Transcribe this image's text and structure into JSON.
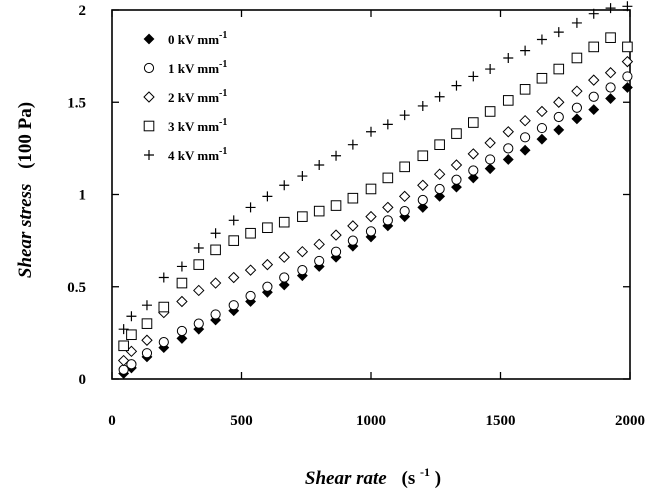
{
  "chart_data": {
    "type": "scatter",
    "xlabel_main": "Shear rate",
    "xlabel_unit": "(s",
    "xlabel_exp": "-1",
    "xlabel_close": ")",
    "ylabel_main": "Shear stress",
    "ylabel_unit": "(100 Pa)",
    "xlim": [
      0,
      2000
    ],
    "ylim": [
      0,
      2
    ],
    "xticks": [
      0,
      500,
      1000,
      1500,
      2000
    ],
    "yticks": [
      0,
      0.5,
      1,
      1.5,
      2
    ],
    "xtick_labels": [
      "0",
      "500",
      "1000",
      "1500",
      "2000"
    ],
    "ytick_labels": [
      "0",
      "0.5",
      "1",
      "1.5",
      "2"
    ],
    "grid": false,
    "legend_position": "top-left",
    "series": [
      {
        "name": "0 kV mm",
        "name_exp": "-1",
        "marker": "filled-diamond",
        "x": [
          45,
          75,
          135,
          200,
          270,
          335,
          400,
          470,
          535,
          600,
          665,
          735,
          800,
          865,
          930,
          1000,
          1065,
          1130,
          1200,
          1265,
          1330,
          1395,
          1460,
          1530,
          1595,
          1660,
          1725,
          1795,
          1860,
          1925,
          1990
        ],
        "y": [
          0.03,
          0.06,
          0.12,
          0.17,
          0.22,
          0.27,
          0.32,
          0.37,
          0.42,
          0.47,
          0.51,
          0.56,
          0.61,
          0.66,
          0.72,
          0.77,
          0.83,
          0.88,
          0.93,
          0.99,
          1.04,
          1.09,
          1.14,
          1.19,
          1.24,
          1.3,
          1.35,
          1.41,
          1.46,
          1.52,
          1.58
        ]
      },
      {
        "name": "1 kV mm",
        "name_exp": "-1",
        "marker": "open-circle",
        "x": [
          45,
          75,
          135,
          200,
          270,
          335,
          400,
          470,
          535,
          600,
          665,
          735,
          800,
          865,
          930,
          1000,
          1065,
          1130,
          1200,
          1265,
          1330,
          1395,
          1460,
          1530,
          1595,
          1660,
          1725,
          1795,
          1860,
          1925,
          1990
        ],
        "y": [
          0.05,
          0.08,
          0.14,
          0.2,
          0.26,
          0.3,
          0.35,
          0.4,
          0.45,
          0.5,
          0.55,
          0.59,
          0.64,
          0.69,
          0.75,
          0.8,
          0.86,
          0.91,
          0.97,
          1.03,
          1.08,
          1.13,
          1.19,
          1.25,
          1.31,
          1.36,
          1.42,
          1.47,
          1.53,
          1.58,
          1.64
        ]
      },
      {
        "name": "2 kV mm",
        "name_exp": "-1",
        "marker": "open-diamond",
        "x": [
          45,
          75,
          135,
          200,
          270,
          335,
          400,
          470,
          535,
          600,
          665,
          735,
          800,
          865,
          930,
          1000,
          1065,
          1130,
          1200,
          1265,
          1330,
          1395,
          1460,
          1530,
          1595,
          1660,
          1725,
          1795,
          1860,
          1925,
          1990
        ],
        "y": [
          0.1,
          0.15,
          0.21,
          0.36,
          0.42,
          0.48,
          0.52,
          0.55,
          0.59,
          0.62,
          0.66,
          0.69,
          0.73,
          0.78,
          0.83,
          0.88,
          0.93,
          0.99,
          1.05,
          1.11,
          1.16,
          1.22,
          1.28,
          1.34,
          1.4,
          1.45,
          1.5,
          1.56,
          1.62,
          1.66,
          1.72
        ]
      },
      {
        "name": "3 kV mm",
        "name_exp": "-1",
        "marker": "open-square",
        "x": [
          45,
          75,
          135,
          200,
          270,
          335,
          400,
          470,
          535,
          600,
          665,
          735,
          800,
          865,
          930,
          1000,
          1065,
          1130,
          1200,
          1265,
          1330,
          1395,
          1460,
          1530,
          1595,
          1660,
          1725,
          1795,
          1860,
          1925,
          1990
        ],
        "y": [
          0.18,
          0.24,
          0.3,
          0.39,
          0.52,
          0.62,
          0.7,
          0.75,
          0.79,
          0.82,
          0.85,
          0.88,
          0.91,
          0.94,
          0.98,
          1.03,
          1.09,
          1.15,
          1.21,
          1.27,
          1.33,
          1.39,
          1.45,
          1.51,
          1.57,
          1.63,
          1.68,
          1.74,
          1.8,
          1.85,
          1.8
        ]
      },
      {
        "name": "4 kV mm",
        "name_exp": "-1",
        "marker": "plus",
        "x": [
          45,
          75,
          135,
          200,
          270,
          335,
          400,
          470,
          535,
          600,
          665,
          735,
          800,
          865,
          930,
          1000,
          1065,
          1130,
          1200,
          1265,
          1330,
          1395,
          1460,
          1530,
          1595,
          1660,
          1725,
          1795,
          1860,
          1925,
          1990
        ],
        "y": [
          0.27,
          0.34,
          0.4,
          0.55,
          0.61,
          0.71,
          0.79,
          0.86,
          0.93,
          0.99,
          1.05,
          1.1,
          1.16,
          1.21,
          1.27,
          1.34,
          1.38,
          1.43,
          1.48,
          1.53,
          1.59,
          1.64,
          1.68,
          1.74,
          1.78,
          1.84,
          1.88,
          1.93,
          1.98,
          2.01,
          2.02
        ]
      }
    ]
  }
}
